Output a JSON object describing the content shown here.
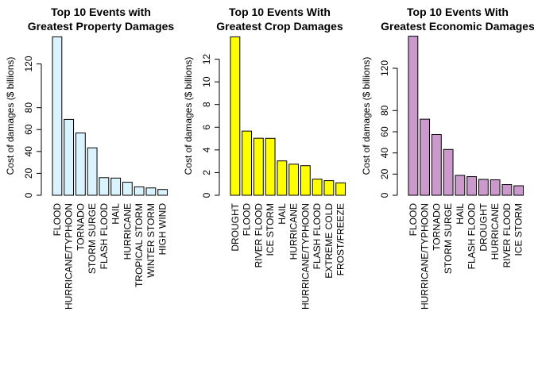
{
  "chart_data": [
    {
      "type": "bar",
      "title": [
        "Top 10 Events with",
        "Greatest Property Damages"
      ],
      "ylabel": "Cost of damages ($ billions)",
      "xlabel": "",
      "ylim": [
        0,
        145
      ],
      "yticks": [
        0,
        20,
        40,
        60,
        80,
        120
      ],
      "fill": "#d9f3ff",
      "categories": [
        "FLOOD",
        "HURRICANE/TYPHOON",
        "TORNADO",
        "STORM SURGE",
        "FLASH FLOOD",
        "HAIL",
        "HURRICANE",
        "TROPICAL STORM",
        "WINTER STORM",
        "HIGH WIND"
      ],
      "values": [
        144.7,
        69.3,
        56.9,
        43.3,
        16.1,
        15.7,
        11.9,
        7.7,
        6.7,
        5.3
      ]
    },
    {
      "type": "bar",
      "title": [
        "Top 10 Events With",
        "Greatest Crop Damages"
      ],
      "ylabel": "Cost of damages ($ billions)",
      "xlabel": "",
      "ylim": [
        0,
        14
      ],
      "yticks": [
        0,
        2,
        4,
        6,
        8,
        10,
        12
      ],
      "fill": "#ffff00",
      "categories": [
        "DROUGHT",
        "FLOOD",
        "RIVER FLOOD",
        "ICE STORM",
        "HAIL",
        "HURRICANE",
        "HURRICANE/TYPHOON",
        "FLASH FLOOD",
        "EXTREME COLD",
        "FROST/FREEZE"
      ],
      "values": [
        13.97,
        5.66,
        5.03,
        5.02,
        3.03,
        2.74,
        2.61,
        1.42,
        1.29,
        1.09
      ]
    },
    {
      "type": "bar",
      "title": [
        "Top 10 Events With",
        "Greatest Economic Damages"
      ],
      "ylabel": "Cost of damages ($ billions)",
      "xlabel": "",
      "ylim": [
        0,
        150
      ],
      "yticks": [
        0,
        20,
        40,
        60,
        80,
        120
      ],
      "fill": "#cc99cc",
      "categories": [
        "FLOOD",
        "HURRICANE/TYPHOON",
        "TORNADO",
        "STORM SURGE",
        "HAIL",
        "FLASH FLOOD",
        "DROUGHT",
        "HURRICANE",
        "RIVER FLOOD",
        "ICE STORM"
      ],
      "values": [
        150.3,
        71.9,
        57.4,
        43.3,
        18.8,
        17.6,
        15.0,
        14.6,
        10.1,
        8.97
      ]
    }
  ]
}
